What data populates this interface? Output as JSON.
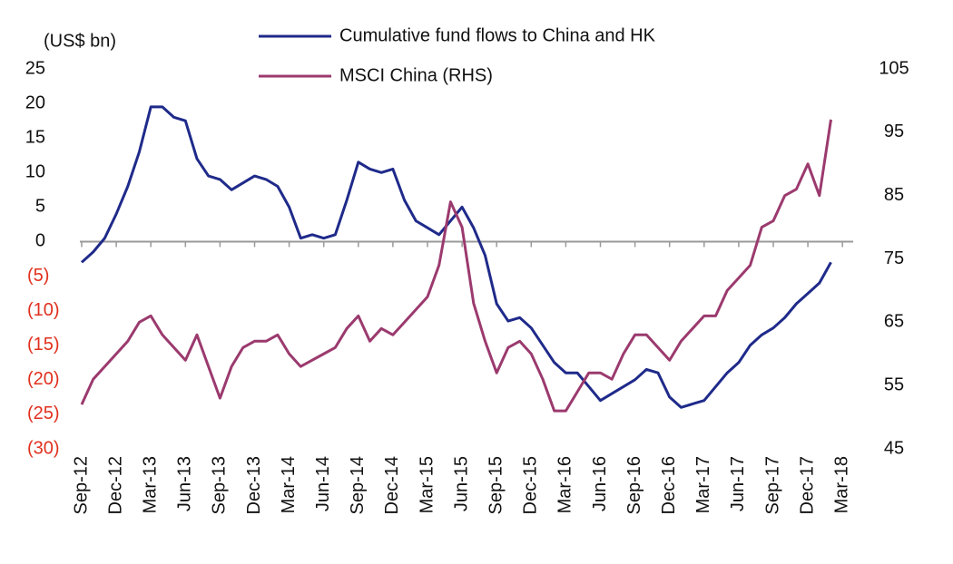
{
  "chart_data": {
    "type": "line",
    "y_axis_label": "(US$ bn)",
    "x": [
      "Sep-12",
      "Oct-12",
      "Nov-12",
      "Dec-12",
      "Jan-13",
      "Feb-13",
      "Mar-13",
      "Apr-13",
      "May-13",
      "Jun-13",
      "Jul-13",
      "Aug-13",
      "Sep-13",
      "Oct-13",
      "Nov-13",
      "Dec-13",
      "Jan-14",
      "Feb-14",
      "Mar-14",
      "Apr-14",
      "May-14",
      "Jun-14",
      "Jul-14",
      "Aug-14",
      "Sep-14",
      "Oct-14",
      "Nov-14",
      "Dec-14",
      "Jan-15",
      "Feb-15",
      "Mar-15",
      "Apr-15",
      "May-15",
      "Jun-15",
      "Jul-15",
      "Aug-15",
      "Sep-15",
      "Oct-15",
      "Nov-15",
      "Dec-15",
      "Jan-16",
      "Feb-16",
      "Mar-16",
      "Apr-16",
      "May-16",
      "Jun-16",
      "Jul-16",
      "Aug-16",
      "Sep-16",
      "Oct-16",
      "Nov-16",
      "Dec-16",
      "Jan-17",
      "Feb-17",
      "Mar-17",
      "Apr-17",
      "May-17",
      "Jun-17",
      "Jul-17",
      "Aug-17",
      "Sep-17",
      "Oct-17",
      "Nov-17",
      "Dec-17",
      "Jan-18",
      "Feb-18"
    ],
    "xticks": [
      "Sep-12",
      "Dec-12",
      "Mar-13",
      "Jun-13",
      "Sep-13",
      "Dec-13",
      "Mar-14",
      "Jun-14",
      "Sep-14",
      "Dec-14",
      "Mar-15",
      "Jun-15",
      "Sep-15",
      "Dec-15",
      "Mar-16",
      "Jun-16",
      "Sep-16",
      "Dec-16",
      "Mar-17",
      "Jun-17",
      "Sep-17",
      "Dec-17",
      "Mar-18"
    ],
    "series": [
      {
        "name": "Cumulative fund flows to China and HK",
        "color": "#1f2a8a",
        "values": [
          -3,
          -1.5,
          0.5,
          4,
          8,
          13,
          19.5,
          19.5,
          18,
          17.5,
          12,
          9.5,
          9,
          7.5,
          8.5,
          9.5,
          9,
          8,
          5,
          0.5,
          1,
          0.5,
          1,
          6,
          11.5,
          10.5,
          10,
          10.5,
          6,
          3,
          2,
          1,
          3,
          5,
          2,
          -2,
          -9,
          -11.5,
          -11,
          -12.5,
          -15,
          -17.5,
          -19,
          -19,
          -21,
          -23,
          -22,
          -21,
          -20,
          -18.5,
          -19,
          -22.5,
          -24,
          -23.5,
          -23,
          -21,
          -19,
          -17.5,
          -15,
          -13.5,
          -12.5,
          -11,
          -9,
          -7.5,
          -6,
          -3
        ]
      },
      {
        "name": "MSCI China (RHS)",
        "color": "#9b3a6e",
        "axis": "y2",
        "values": [
          52,
          56,
          58,
          60,
          62,
          65,
          66,
          63,
          61,
          59,
          63,
          58,
          53,
          58,
          61,
          62,
          62,
          63,
          60,
          58,
          59,
          60,
          61,
          64,
          66,
          62,
          64,
          63,
          65,
          67,
          69,
          74,
          84,
          80,
          68,
          62,
          57,
          61,
          62,
          60,
          56,
          51,
          51,
          54,
          57,
          57,
          56,
          60,
          63,
          63,
          61,
          59,
          62,
          64,
          66,
          66,
          70,
          72,
          74,
          80,
          81,
          85,
          86,
          90,
          85,
          97
        ]
      }
    ],
    "ylim": [
      -30,
      25
    ],
    "yticks": [
      {
        "value": -30,
        "label": "(30)"
      },
      {
        "value": -25,
        "label": "(25)"
      },
      {
        "value": -20,
        "label": "(20)"
      },
      {
        "value": -15,
        "label": "(15)"
      },
      {
        "value": -10,
        "label": "(10)"
      },
      {
        "value": -5,
        "label": "(5)"
      },
      0,
      5,
      10,
      15,
      20,
      25
    ],
    "negative_tick_color": "#e0301e",
    "y2lim": [
      45,
      105
    ],
    "y2ticks": [
      45,
      55,
      65,
      75,
      85,
      95,
      105
    ],
    "legend": "top"
  }
}
